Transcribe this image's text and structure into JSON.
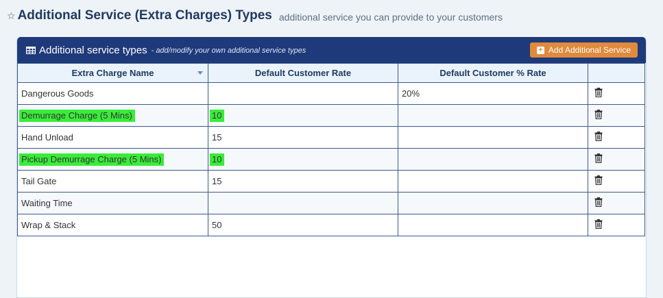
{
  "page": {
    "title": "Additional Service (Extra Charges) Types",
    "subtitle": "additional service you can provide to your customers"
  },
  "panel": {
    "title": "Additional service types",
    "subtitle": "- add/modify your own additional service types",
    "add_button_label": "Add Additional Service"
  },
  "table": {
    "columns": [
      "Extra Charge Name",
      "Default Customer Rate",
      "Default Customer % Rate",
      ""
    ],
    "rows": [
      {
        "name": "Dangerous Goods",
        "rate": "",
        "pct_rate": "20%",
        "highlighted": false
      },
      {
        "name": "Demurrage Charge (5 Mins)",
        "rate": "10",
        "pct_rate": "",
        "highlighted": true
      },
      {
        "name": "Hand Unload",
        "rate": "15",
        "pct_rate": "",
        "highlighted": false
      },
      {
        "name": "Pickup Demurrage Charge (5 Mins)",
        "rate": "10",
        "pct_rate": "",
        "highlighted": true
      },
      {
        "name": "Tail Gate",
        "rate": "15",
        "pct_rate": "",
        "highlighted": false
      },
      {
        "name": "Waiting Time",
        "rate": "",
        "pct_rate": "",
        "highlighted": false
      },
      {
        "name": "Wrap & Stack",
        "rate": "50",
        "pct_rate": "",
        "highlighted": false
      }
    ]
  },
  "icons": {
    "header": "star-icon",
    "panel": "table-icon",
    "button": "plus-square-icon",
    "row_action": "trash-icon"
  },
  "colors": {
    "panel_header": "#1f3a7a",
    "button": "#e08a3c",
    "highlight": "#3aec3a",
    "title": "#1f3a60"
  }
}
